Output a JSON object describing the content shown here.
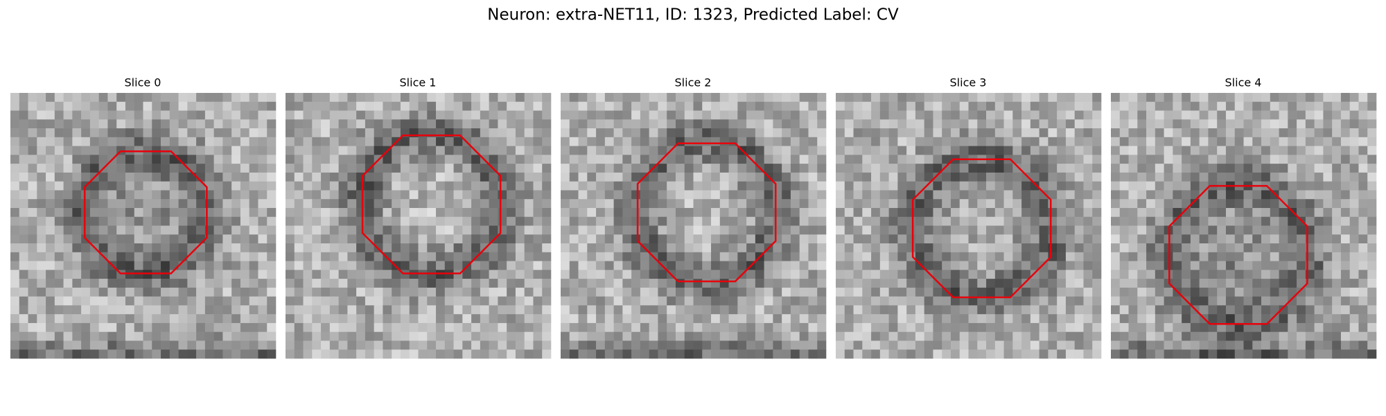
{
  "title": "Neuron: extra-NET11, ID: 1323, Predicted Label: CV",
  "panels": [
    {
      "title": "Slice 0"
    },
    {
      "title": "Slice 1"
    },
    {
      "title": "Slice 2"
    },
    {
      "title": "Slice 3"
    },
    {
      "title": "Slice 4"
    }
  ]
}
